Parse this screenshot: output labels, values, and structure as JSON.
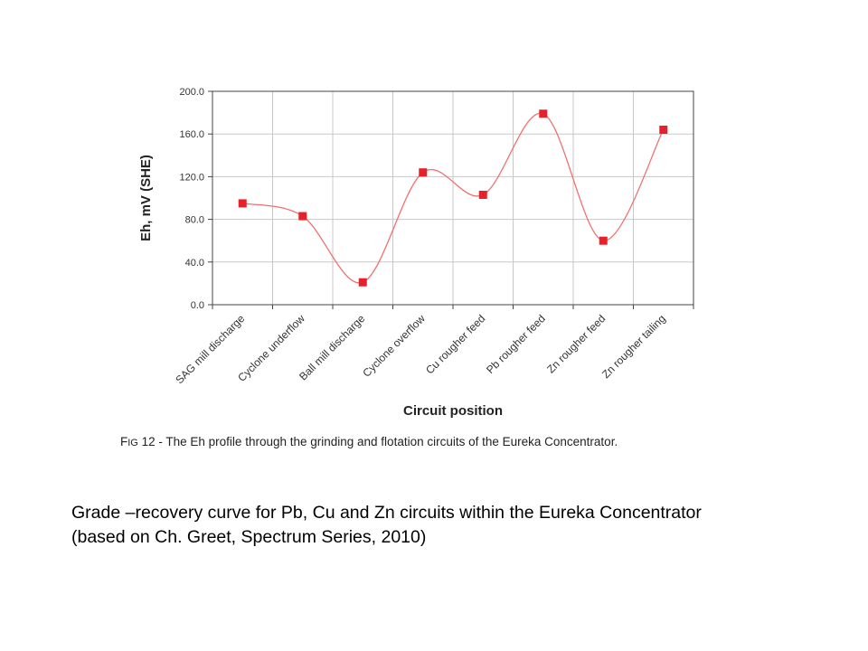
{
  "chart_data": {
    "type": "line",
    "categories": [
      "SAG mill discharge",
      "Cyclone underflow",
      "Ball mill discharge",
      "Cyclone overflow",
      "Cu rougher feed",
      "Pb rougher feed",
      "Zn rougher feed",
      "Zn rougher tailing"
    ],
    "values": [
      95,
      83,
      21,
      124,
      103,
      179,
      60,
      164
    ],
    "xlabel": "Circuit position",
    "ylabel": "Eh, mV (SHE)",
    "ylim": [
      0,
      200
    ],
    "yticks": [
      "0.0",
      "40.0",
      "80.0",
      "120.0",
      "160.0",
      "200.0"
    ],
    "line_color": "#f07070",
    "marker_color": "#e8202a",
    "grid": true,
    "legend": "none"
  },
  "caption": {
    "fig_prefix": "F",
    "fig_small": "IG",
    "fig_rest": " 12 - The Eh profile through the grinding and flotation circuits of the Eureka Concentrator."
  },
  "slide_text": {
    "line1": "Grade –recovery curve for Pb, Cu and Zn circuits within the Eureka Concentrator",
    "line2": "(based on Ch. Greet, Spectrum Series, 2010)"
  }
}
